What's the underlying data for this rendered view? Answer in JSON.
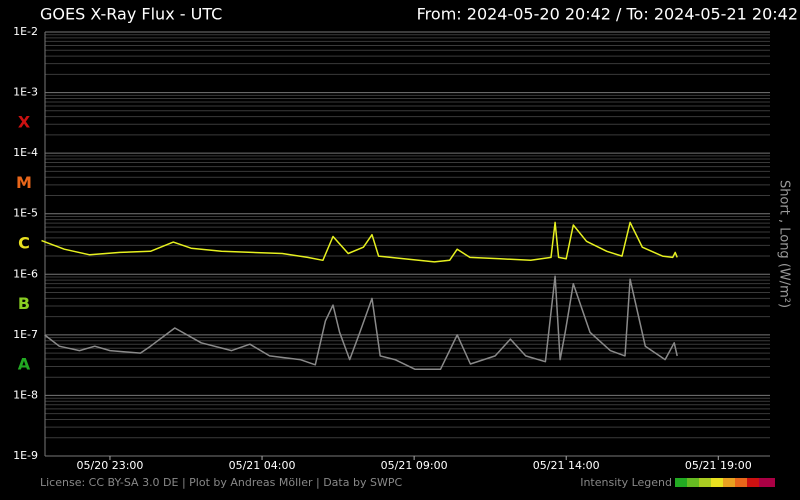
{
  "chart_data": {
    "type": "line",
    "title": "GOES X-Ray Flux - UTC",
    "range_label": "From: 2024-05-20 20:42  /  To: 2024-05-21 20:42",
    "y_axis_label": "Short , Long (W/m²)",
    "footer": "License: CC BY-SA 3.0 DE | Plot by Andreas Möller | Data by SWPC",
    "legend_label": "Intensity Legend",
    "log_scale": true,
    "grid": true,
    "xlim": [
      "2024-05-20 20:42",
      "2024-05-21 20:42"
    ],
    "xticks": [
      {
        "value": "2024-05-20 23:00",
        "label": "05/20 23:00"
      },
      {
        "value": "2024-05-21 04:00",
        "label": "05/21 04:00"
      },
      {
        "value": "2024-05-21 09:00",
        "label": "05/21 09:00"
      },
      {
        "value": "2024-05-21 14:00",
        "label": "05/21 14:00"
      },
      {
        "value": "2024-05-21 19:00",
        "label": "05/21 19:00"
      }
    ],
    "ylim": [
      1e-09,
      0.01
    ],
    "yticks": [
      {
        "value": 0.01,
        "label": "1E-2"
      },
      {
        "value": 0.001,
        "label": "1E-3"
      },
      {
        "value": 0.0001,
        "label": "1E-4"
      },
      {
        "value": 1e-05,
        "label": "1E-5"
      },
      {
        "value": 1e-06,
        "label": "1E-6"
      },
      {
        "value": 1e-07,
        "label": "1E-7"
      },
      {
        "value": 1e-08,
        "label": "1E-8"
      },
      {
        "value": 1e-09,
        "label": "1E-9"
      }
    ],
    "classes": [
      {
        "label": "X",
        "color": "#cc1111",
        "lower": 0.0001,
        "upper": 0.001
      },
      {
        "label": "M",
        "color": "#e8661a",
        "lower": 1e-05,
        "upper": 0.0001
      },
      {
        "label": "C",
        "color": "#e8e020",
        "lower": 1e-06,
        "upper": 1e-05
      },
      {
        "label": "B",
        "color": "#88cc22",
        "lower": 1e-07,
        "upper": 1e-06
      },
      {
        "label": "A",
        "color": "#22aa22",
        "lower": 1e-08,
        "upper": 1e-07
      }
    ],
    "series": [
      {
        "name": "Long",
        "color": "#e6f020",
        "x": [
          "2024-05-20 20:45",
          "2024-05-20 21:30",
          "2024-05-20 22:20",
          "2024-05-20 23:20",
          "2024-05-21 00:20",
          "2024-05-21 01:05",
          "2024-05-21 01:40",
          "2024-05-21 02:40",
          "2024-05-21 03:40",
          "2024-05-21 04:40",
          "2024-05-21 05:30",
          "2024-05-21 06:00",
          "2024-05-21 06:20",
          "2024-05-21 06:50",
          "2024-05-21 07:20",
          "2024-05-21 07:37",
          "2024-05-21 07:50",
          "2024-05-21 08:40",
          "2024-05-21 09:40",
          "2024-05-21 10:10",
          "2024-05-21 10:25",
          "2024-05-21 10:50",
          "2024-05-21 11:50",
          "2024-05-21 12:50",
          "2024-05-21 13:30",
          "2024-05-21 13:38",
          "2024-05-21 13:45",
          "2024-05-21 14:00",
          "2024-05-21 14:14",
          "2024-05-21 14:40",
          "2024-05-21 15:20",
          "2024-05-21 15:50",
          "2024-05-21 16:06",
          "2024-05-21 16:30",
          "2024-05-21 17:10",
          "2024-05-21 17:30",
          "2024-05-21 17:35",
          "2024-05-21 17:39"
        ],
        "values": [
          3.6e-06,
          2.6e-06,
          2.1e-06,
          2.3e-06,
          2.4e-06,
          3.4e-06,
          2.7e-06,
          2.4e-06,
          2.3e-06,
          2.2e-06,
          1.9e-06,
          1.7e-06,
          4.2e-06,
          2.2e-06,
          2.8e-06,
          4.5e-06,
          2e-06,
          1.8e-06,
          1.6e-06,
          1.7e-06,
          2.6e-06,
          1.9e-06,
          1.8e-06,
          1.7e-06,
          1.9e-06,
          7.2e-06,
          1.9e-06,
          1.8e-06,
          6.5e-06,
          3.5e-06,
          2.4e-06,
          2e-06,
          7.2e-06,
          2.8e-06,
          2e-06,
          1.9e-06,
          2.3e-06,
          1.9e-06
        ]
      },
      {
        "name": "Short",
        "color": "#8a8a8a",
        "x": [
          "2024-05-20 20:51",
          "2024-05-20 21:20",
          "2024-05-20 22:00",
          "2024-05-20 22:30",
          "2024-05-20 23:00",
          "2024-05-21 00:00",
          "2024-05-21 00:20",
          "2024-05-21 01:08",
          "2024-05-21 02:00",
          "2024-05-21 03:00",
          "2024-05-21 03:36",
          "2024-05-21 04:15",
          "2024-05-21 05:15",
          "2024-05-21 05:45",
          "2024-05-21 06:05",
          "2024-05-21 06:20",
          "2024-05-21 06:33",
          "2024-05-21 06:53",
          "2024-05-21 07:13",
          "2024-05-21 07:37",
          "2024-05-21 07:53",
          "2024-05-21 08:22",
          "2024-05-21 09:02",
          "2024-05-21 09:52",
          "2024-05-21 10:25",
          "2024-05-21 10:51",
          "2024-05-21 11:40",
          "2024-05-21 12:10",
          "2024-05-21 12:40",
          "2024-05-21 13:19",
          "2024-05-21 13:38",
          "2024-05-21 13:48",
          "2024-05-21 13:58",
          "2024-05-21 14:14",
          "2024-05-21 14:47",
          "2024-05-21 15:27",
          "2024-05-21 15:56",
          "2024-05-21 16:06",
          "2024-05-21 16:36",
          "2024-05-21 17:15",
          "2024-05-21 17:33",
          "2024-05-21 17:39"
        ],
        "values": [
          1e-07,
          6.5e-08,
          5.5e-08,
          6.5e-08,
          5.5e-08,
          5e-08,
          6.5e-08,
          1.3e-07,
          7.4e-08,
          5.5e-08,
          7e-08,
          4.5e-08,
          3.9e-08,
          3.2e-08,
          1.7e-07,
          3.1e-07,
          1.1e-07,
          3.9e-08,
          1.1e-07,
          4e-07,
          4.5e-08,
          3.9e-08,
          2.7e-08,
          2.7e-08,
          1e-07,
          3.3e-08,
          4.5e-08,
          8.5e-08,
          4.5e-08,
          3.6e-08,
          9.3e-07,
          3.9e-08,
          1.1e-07,
          7e-07,
          1.1e-07,
          5.5e-08,
          4.5e-08,
          8.3e-07,
          6.5e-08,
          3.9e-08,
          7.4e-08,
          4.5e-08
        ]
      }
    ]
  }
}
